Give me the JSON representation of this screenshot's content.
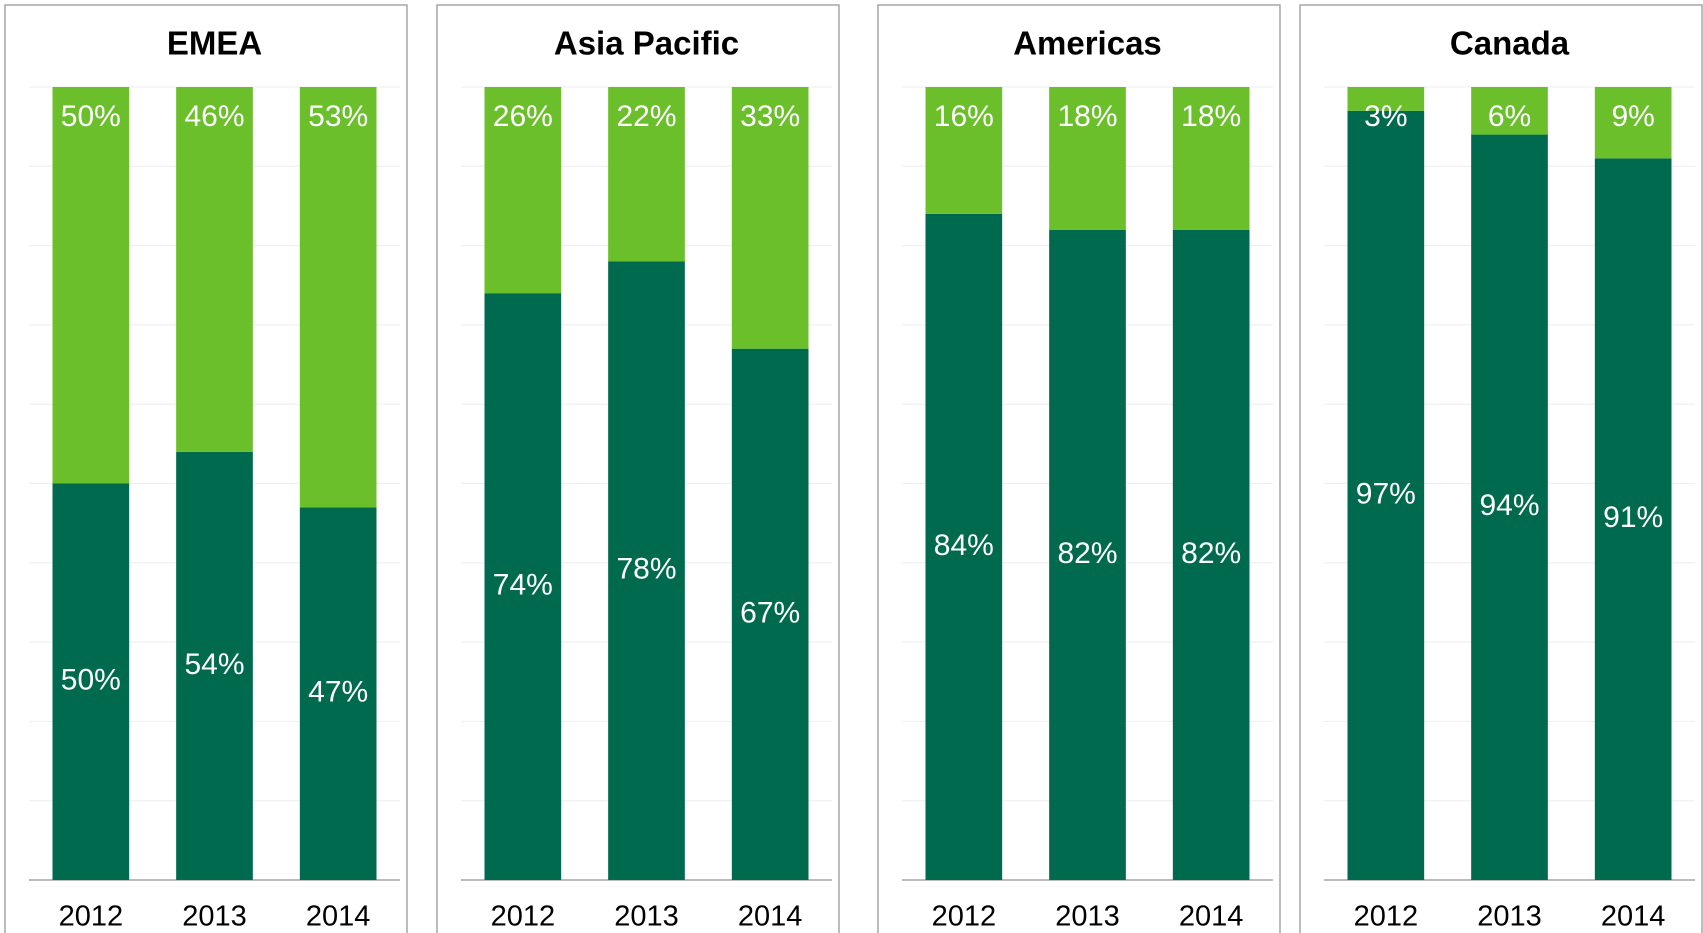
{
  "chart_data": [
    {
      "type": "bar",
      "stacked": true,
      "title": "EMEA",
      "categories": [
        "2012",
        "2013",
        "2014"
      ],
      "series": [
        {
          "color": "#006a4e",
          "values": [
            50,
            54,
            47
          ],
          "value_labels": [
            "50%",
            "54%",
            "47%"
          ]
        },
        {
          "color": "#6abf2a",
          "values": [
            50,
            46,
            53
          ],
          "value_labels": [
            "50%",
            "46%",
            "53%"
          ]
        }
      ],
      "ylim": [
        0,
        100
      ],
      "yticks": [
        0,
        10,
        20,
        30,
        40,
        50,
        60,
        70,
        80,
        90,
        100
      ],
      "grid": true
    },
    {
      "type": "bar",
      "stacked": true,
      "title": "Asia Pacific",
      "categories": [
        "2012",
        "2013",
        "2014"
      ],
      "series": [
        {
          "color": "#006a4e",
          "values": [
            74,
            78,
            67
          ],
          "value_labels": [
            "74%",
            "78%",
            "67%"
          ]
        },
        {
          "color": "#6abf2a",
          "values": [
            26,
            22,
            33
          ],
          "value_labels": [
            "26%",
            "22%",
            "33%"
          ]
        }
      ],
      "ylim": [
        0,
        100
      ],
      "yticks": [
        0,
        10,
        20,
        30,
        40,
        50,
        60,
        70,
        80,
        90,
        100
      ],
      "grid": true
    },
    {
      "type": "bar",
      "stacked": true,
      "title": "Americas",
      "categories": [
        "2012",
        "2013",
        "2014"
      ],
      "series": [
        {
          "color": "#006a4e",
          "values": [
            84,
            82,
            82
          ],
          "value_labels": [
            "84%",
            "82%",
            "82%"
          ]
        },
        {
          "color": "#6abf2a",
          "values": [
            16,
            18,
            18
          ],
          "value_labels": [
            "16%",
            "18%",
            "18%"
          ]
        }
      ],
      "ylim": [
        0,
        100
      ],
      "yticks": [
        0,
        10,
        20,
        30,
        40,
        50,
        60,
        70,
        80,
        90,
        100
      ],
      "grid": true
    },
    {
      "type": "bar",
      "stacked": true,
      "title": "Canada",
      "categories": [
        "2012",
        "2013",
        "2014"
      ],
      "series": [
        {
          "color": "#006a4e",
          "values": [
            97,
            94,
            91
          ],
          "value_labels": [
            "97%",
            "94%",
            "91%"
          ]
        },
        {
          "color": "#6abf2a",
          "values": [
            3,
            6,
            9
          ],
          "value_labels": [
            "3%",
            "6%",
            "9%"
          ]
        }
      ],
      "ylim": [
        0,
        100
      ],
      "yticks": [
        0,
        10,
        20,
        30,
        40,
        50,
        60,
        70,
        80,
        90,
        100
      ],
      "grid": true
    }
  ]
}
